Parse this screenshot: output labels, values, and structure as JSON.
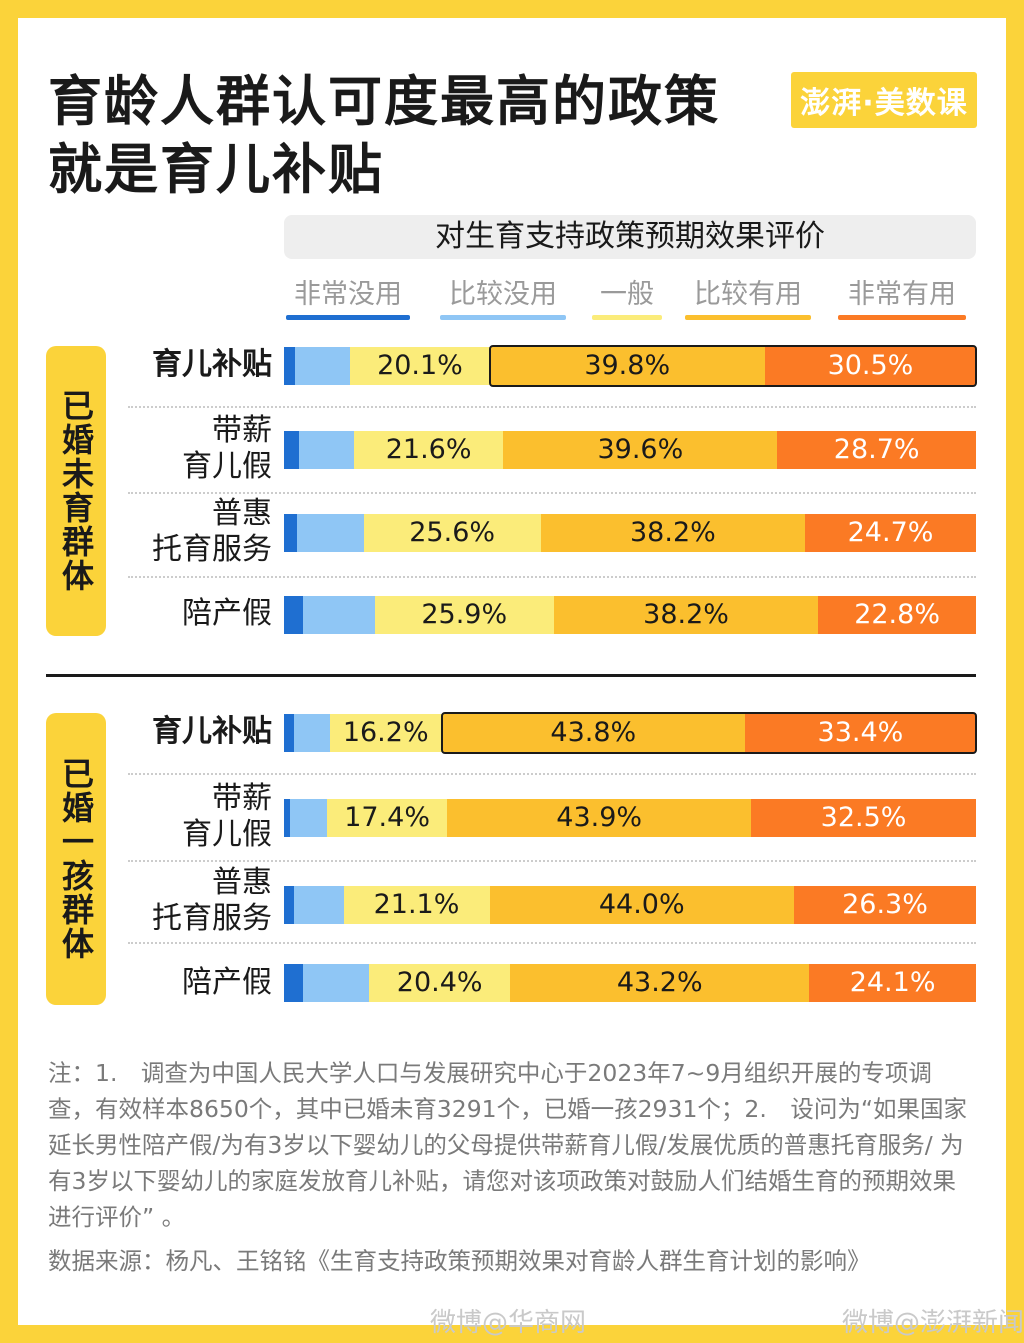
{
  "title_lines": [
    "育龄人群认可度最高的政策",
    "就是育儿补贴"
  ],
  "logo_text": "澎湃·美数课",
  "chart_data": {
    "type": "bar",
    "stacked": true,
    "orientation": "horizontal",
    "title": "对生育支持政策预期效果评价",
    "legend": [
      "非常没用",
      "比较没用",
      "一般",
      "比较有用",
      "非常有用"
    ],
    "colors": [
      "#1f6fd1",
      "#8fc6f5",
      "#fbec7a",
      "#fbbf2e",
      "#fb7a24"
    ],
    "groups": [
      {
        "name": "已婚未育群体",
        "rows": [
          {
            "label": "育儿补贴",
            "bold": true,
            "highlight": true,
            "values": [
              1.6,
              8.0,
              20.1,
              39.8,
              30.5
            ]
          },
          {
            "label": "带薪育儿假",
            "bold": false,
            "highlight": false,
            "values": [
              2.1,
              8.0,
              21.6,
              39.6,
              28.7
            ]
          },
          {
            "label": "普惠托育服务",
            "bold": false,
            "highlight": false,
            "values": [
              1.9,
              9.6,
              25.6,
              38.2,
              24.7
            ]
          },
          {
            "label": "陪产假",
            "bold": false,
            "highlight": false,
            "values": [
              2.7,
              10.4,
              25.9,
              38.2,
              22.8
            ]
          }
        ]
      },
      {
        "name": "已婚一孩群体",
        "rows": [
          {
            "label": "育儿补贴",
            "bold": true,
            "highlight": true,
            "values": [
              1.5,
              5.1,
              16.2,
              43.8,
              33.4
            ]
          },
          {
            "label": "带薪育儿假",
            "bold": false,
            "highlight": false,
            "values": [
              0.8,
              5.4,
              17.4,
              43.9,
              32.5
            ]
          },
          {
            "label": "普惠托育服务",
            "bold": false,
            "highlight": false,
            "values": [
              1.4,
              7.2,
              21.1,
              44.0,
              26.3
            ]
          },
          {
            "label": "陪产假",
            "bold": false,
            "highlight": false,
            "values": [
              2.8,
              9.5,
              20.4,
              43.2,
              24.1
            ]
          }
        ]
      }
    ]
  },
  "notes": "注：1.　调查为中国人民大学人口与发展研究中心于2023年7~9月组织开展的专项调查，有效样本8650个，其中已婚未育3291个，已婚一孩2931个；2.　设问为“如果国家延长男性陪产假/为有3岁以下婴幼儿的父母提供带薪育儿假/发展优质的普惠托育服务/ 为有3岁以下婴幼儿的家庭发放育儿补贴，请您对该项政策对鼓励人们结婚生育的预期效果进行评价” 。",
  "source": "数据来源：杨凡、王铭铭《生育支持政策预期效果对育龄人群生育计划的影响》",
  "watermarks": [
    "微博@华商网",
    "微博@澎湃新闻"
  ]
}
